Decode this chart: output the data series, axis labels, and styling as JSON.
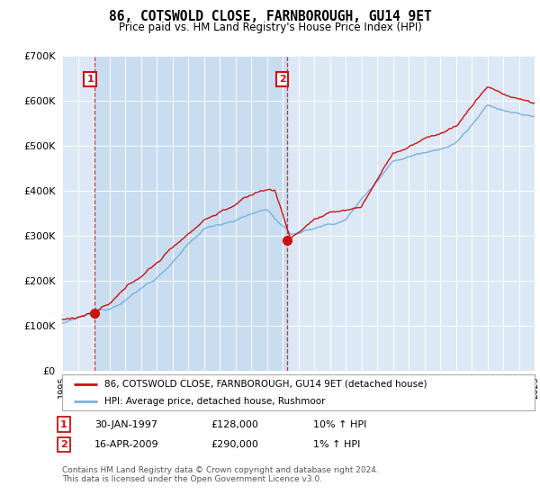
{
  "title": "86, COTSWOLD CLOSE, FARNBOROUGH, GU14 9ET",
  "subtitle": "Price paid vs. HM Land Registry's House Price Index (HPI)",
  "legend_line1": "86, COTSWOLD CLOSE, FARNBOROUGH, GU14 9ET (detached house)",
  "legend_line2": "HPI: Average price, detached house, Rushmoor",
  "annotation1_date": "30-JAN-1997",
  "annotation1_price": "£128,000",
  "annotation1_hpi": "10% ↑ HPI",
  "annotation2_date": "16-APR-2009",
  "annotation2_price": "£290,000",
  "annotation2_hpi": "1% ↑ HPI",
  "footnote": "Contains HM Land Registry data © Crown copyright and database right 2024.\nThis data is licensed under the Open Government Licence v3.0.",
  "fig_bg_color": "#ffffff",
  "plot_bg_color": "#dce8f5",
  "grid_color": "#ffffff",
  "shade_color": "#c8ddf0",
  "hpi_line_color": "#7ab0e0",
  "price_line_color": "#cc1111",
  "marker_color": "#cc1111",
  "dashed_line_color": "#cc1111",
  "ylim": [
    0,
    700000
  ],
  "yticks": [
    0,
    100000,
    200000,
    300000,
    400000,
    500000,
    600000,
    700000
  ],
  "year_start": 1995,
  "year_end": 2025,
  "sale1_year": 1997.08,
  "sale1_price": 128000,
  "sale2_year": 2009.29,
  "sale2_price": 290000
}
